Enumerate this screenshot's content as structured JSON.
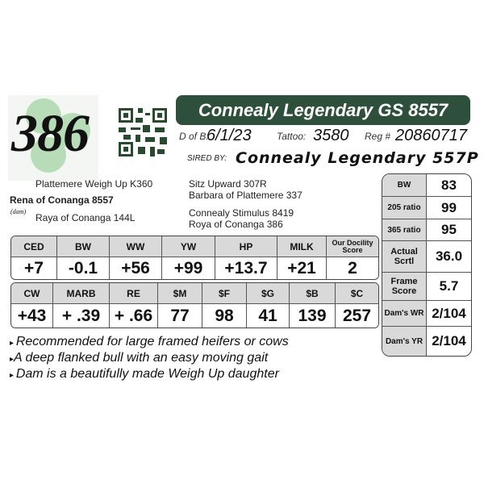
{
  "lot_number": "386",
  "title": "Connealy Legendary GS 8557",
  "info": {
    "dob_label": "D of B:",
    "dob": "6/1/23",
    "tattoo_label": "Tattoo:",
    "tattoo": "3580",
    "reg_label": "Reg #",
    "reg": "20860717"
  },
  "sire": {
    "label": "SIRED BY:",
    "name": "Connealy Legendary 557P"
  },
  "pedigree": {
    "dam_sire": "Plattemere Weigh Up K360",
    "dam": "Rena of Conanga 8557",
    "dam_label": "(dam)",
    "dam_dam": "Raya of Conanga 144L",
    "sire_sire": "Sitz Upward 307R",
    "sire_dam": "Barbara of Plattemere 337",
    "extra1": "Connealy Stimulus 8419",
    "extra2": "Roya of Conanga 386"
  },
  "epd1": {
    "headers": [
      "CED",
      "BW",
      "WW",
      "YW",
      "HP",
      "MILK",
      "Our Docility Score"
    ],
    "values": [
      "+7",
      "-0.1",
      "+56",
      "+99",
      "+13.7",
      "+21",
      "2"
    ]
  },
  "epd2": {
    "headers": [
      "CW",
      "MARB",
      "RE",
      "$M",
      "$F",
      "$G",
      "$B",
      "$C"
    ],
    "values": [
      "+43",
      "+ .39",
      "+ .66",
      "77",
      "98",
      "41",
      "139",
      "257"
    ]
  },
  "side": [
    {
      "label": "BW",
      "value": "83"
    },
    {
      "label": "205 ratio",
      "value": "99"
    },
    {
      "label": "365 ratio",
      "value": "95"
    },
    {
      "label": "Actual Scrtl",
      "value": "36.0"
    },
    {
      "label": "Frame Score",
      "value": "5.7"
    },
    {
      "label": "Dam's WR",
      "value": "2/104"
    },
    {
      "label": "Dam's YR",
      "value": "2/104"
    }
  ],
  "bullets": [
    "Recommended for large framed heifers or cows",
    "A deep flanked bull with an easy moving gait",
    "Dam is a beautifully made Weigh Up daughter"
  ],
  "colors": {
    "title_bar": "#2e4f3b",
    "clover": "#a9d6a9",
    "header_gray": "#d9d9d9"
  }
}
